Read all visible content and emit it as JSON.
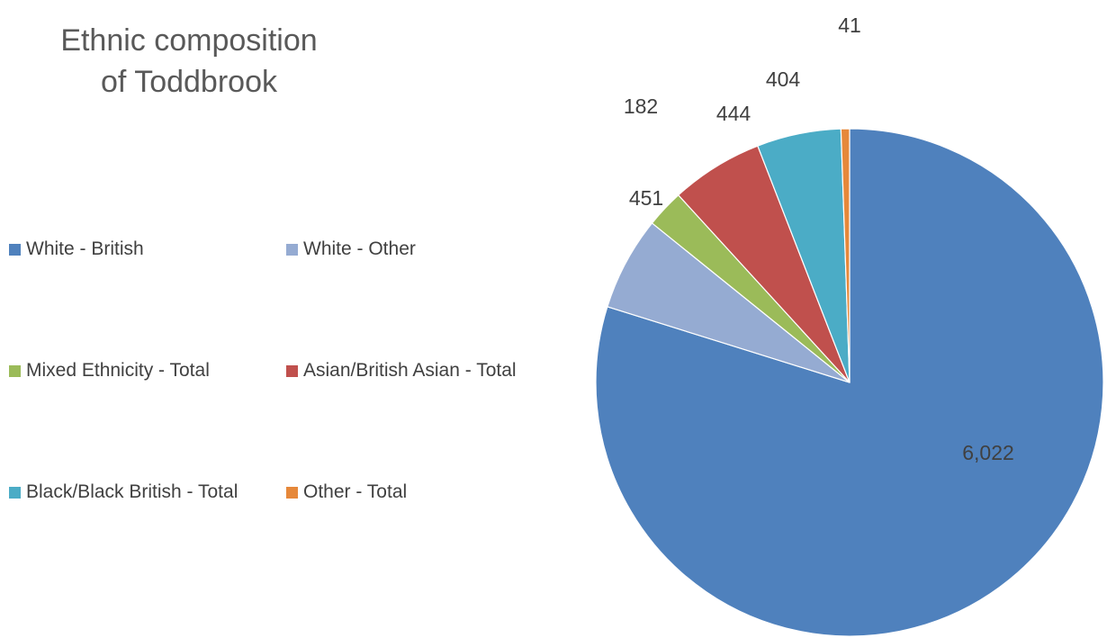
{
  "chart_data": {
    "type": "pie",
    "title": [
      "Ethnic composition",
      "of Toddbrook"
    ],
    "slices": [
      {
        "name": "White - British",
        "value": 6022,
        "label": "6,022",
        "color": "#4F81BD"
      },
      {
        "name": "White - Other",
        "value": 451,
        "label": "451",
        "color": "#95ABD2"
      },
      {
        "name": "Mixed Ethnicity - Total",
        "value": 182,
        "label": "182",
        "color": "#9BBB59"
      },
      {
        "name": "Asian/British Asian - Total",
        "value": 444,
        "label": "444",
        "color": "#C0504D"
      },
      {
        "name": "Black/Black British - Total",
        "value": 404,
        "label": "404",
        "color": "#4BACC6"
      },
      {
        "name": "Other - Total",
        "value": 41,
        "label": "41",
        "color": "#E6883A"
      }
    ],
    "legend_position": "left"
  }
}
